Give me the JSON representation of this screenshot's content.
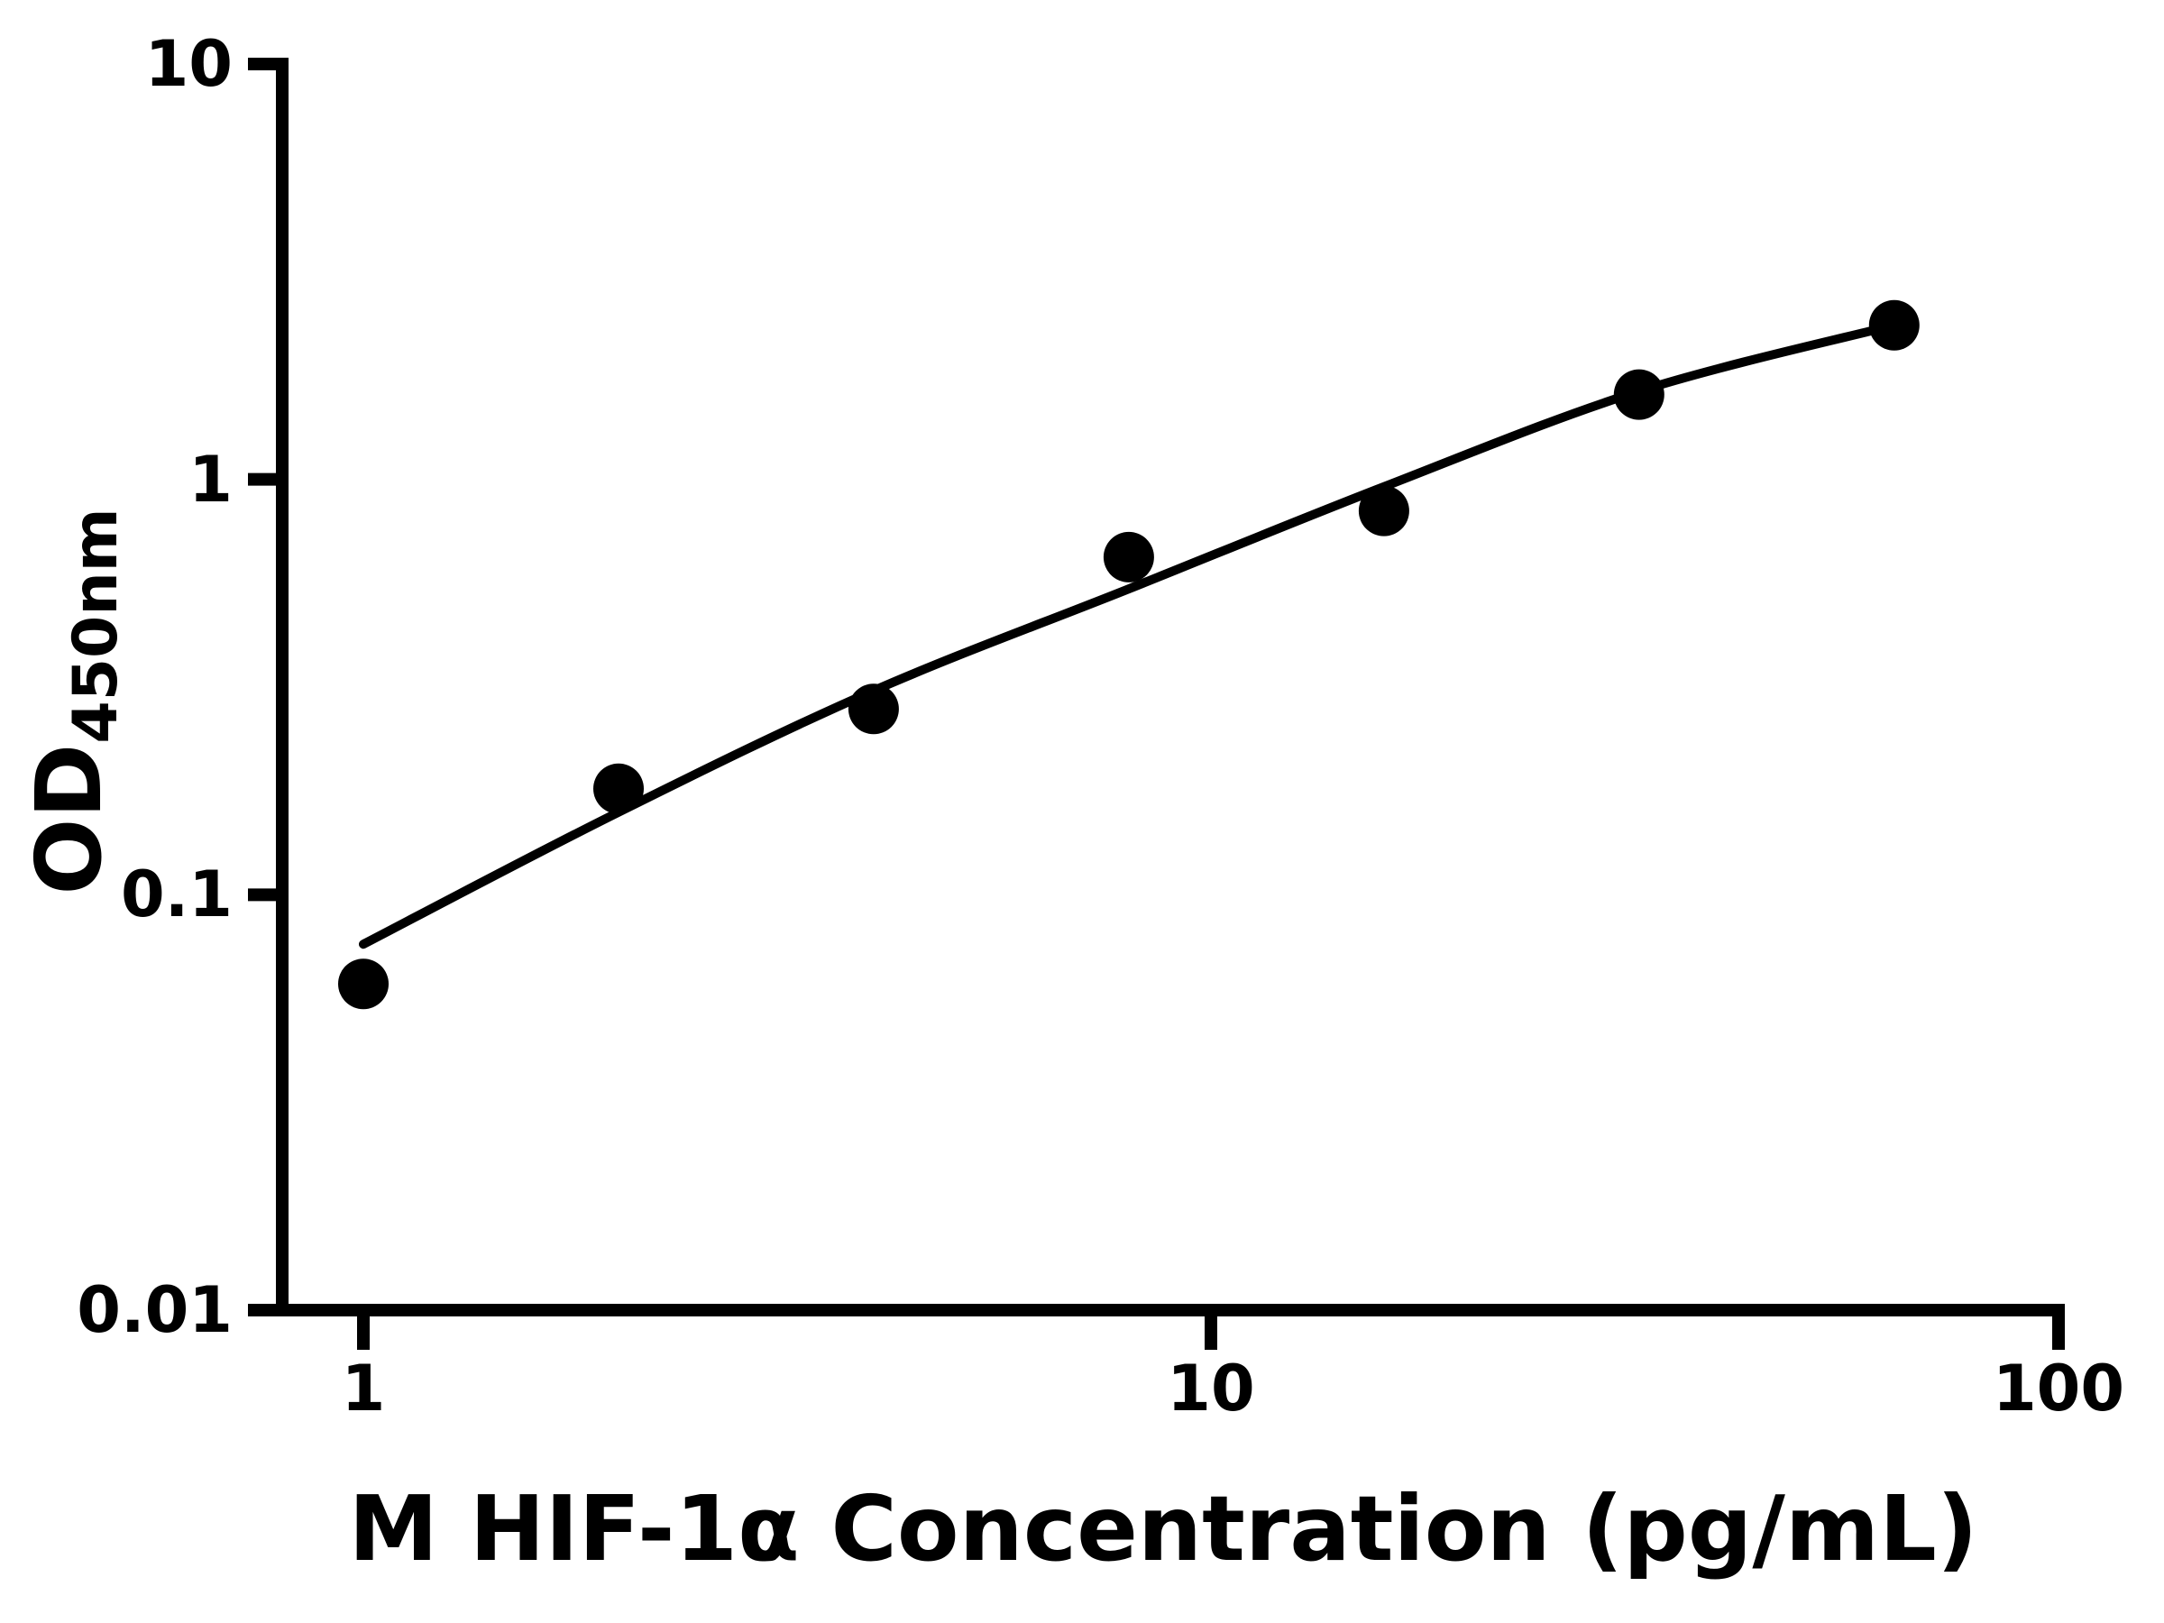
{
  "figure": {
    "background": "#ffffff",
    "ink_color": "#000000"
  },
  "chart_data": {
    "type": "scatter",
    "title": "",
    "xlabel": "M HIF-1α Concentration (pg/mL)",
    "ylabel_main": "OD",
    "ylabel_sub": "450nm",
    "x_scale": "log",
    "y_scale": "log",
    "xlim": [
      1,
      100
    ],
    "ylim": [
      0.01,
      10
    ],
    "grid": "off",
    "legend": "none",
    "x_ticks": [
      {
        "value": 1,
        "label": "1"
      },
      {
        "value": 10,
        "label": "10"
      },
      {
        "value": 100,
        "label": "100"
      }
    ],
    "y_ticks": [
      {
        "value": 10,
        "label": "10"
      },
      {
        "value": 1,
        "label": "1"
      },
      {
        "value": 0.1,
        "label": "0.1"
      },
      {
        "value": 0.01,
        "label": "0.01"
      }
    ],
    "series": [
      {
        "name": "standard-points",
        "marker": "filled-circle",
        "color": "#000000",
        "x": [
          1,
          2,
          4,
          8,
          16,
          32,
          64
        ],
        "y": [
          0.061,
          0.18,
          0.28,
          0.65,
          0.84,
          1.6,
          2.35
        ]
      }
    ],
    "fit_curve": {
      "name": "four-parameter-logistic-fit",
      "color": "#000000",
      "x": [
        1,
        2,
        4,
        8,
        16,
        32,
        64
      ],
      "y": [
        0.076,
        0.158,
        0.31,
        0.545,
        0.96,
        1.63,
        2.35
      ]
    }
  }
}
